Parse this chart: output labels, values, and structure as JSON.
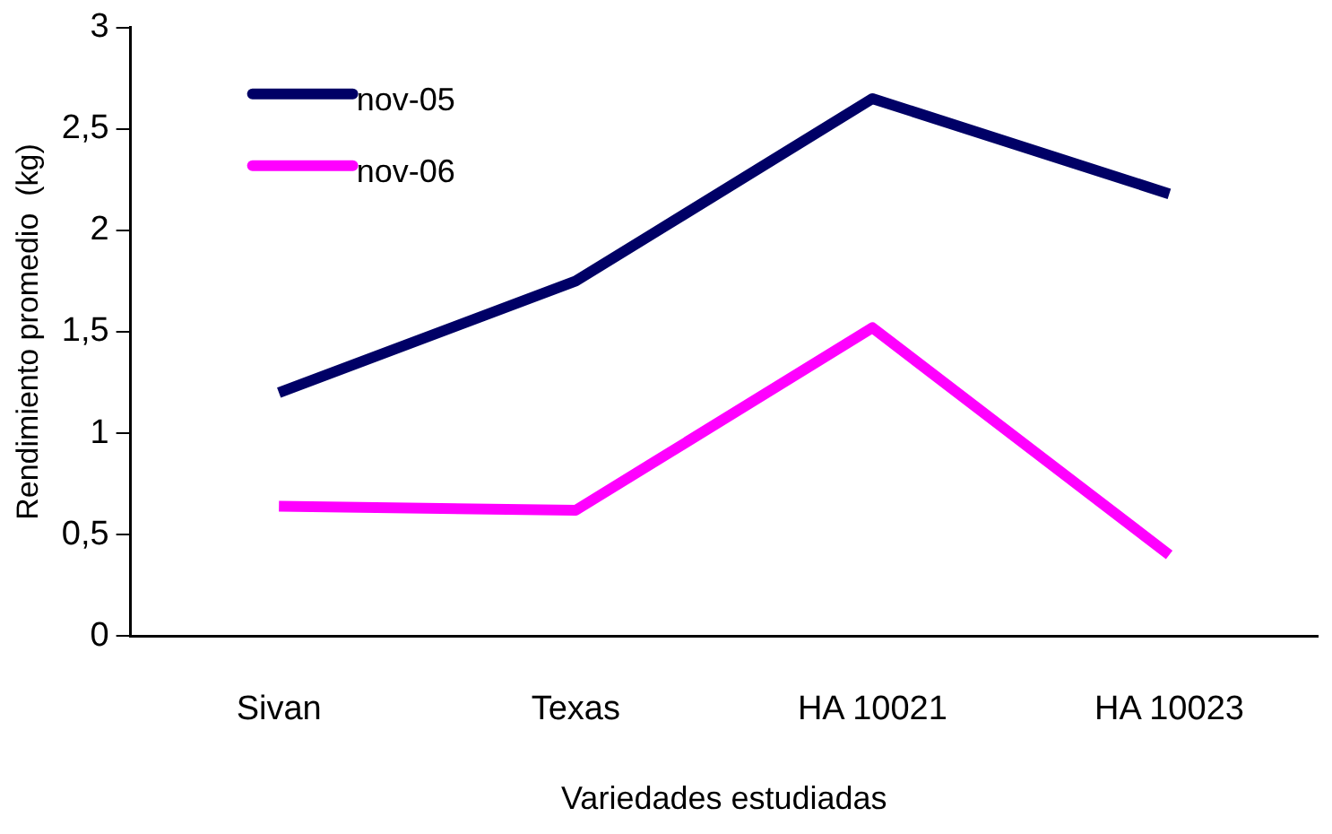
{
  "chart_data": {
    "type": "line",
    "xlabel": "Variedades estudiadas",
    "ylabel": "Rendimiento promedio  (kg)",
    "categories": [
      "Sivan",
      "Texas",
      "HA 10021",
      "HA 10023"
    ],
    "series": [
      {
        "name": "nov-05",
        "color": "#000066",
        "values": [
          1.2,
          1.75,
          2.65,
          2.18
        ]
      },
      {
        "name": "nov-06",
        "color": "#ff00ff",
        "values": [
          0.64,
          0.62,
          1.52,
          0.4
        ]
      }
    ],
    "ylim": [
      0,
      3
    ],
    "yticks": [
      0,
      {
        "value": 0.5,
        "label": "0,5"
      },
      1,
      {
        "value": 1.5,
        "label": "1,5"
      },
      2,
      {
        "value": 2.5,
        "label": "2,5"
      },
      3
    ],
    "grid": false,
    "legend": "top left",
    "marker": "none",
    "line_style": "solid"
  }
}
